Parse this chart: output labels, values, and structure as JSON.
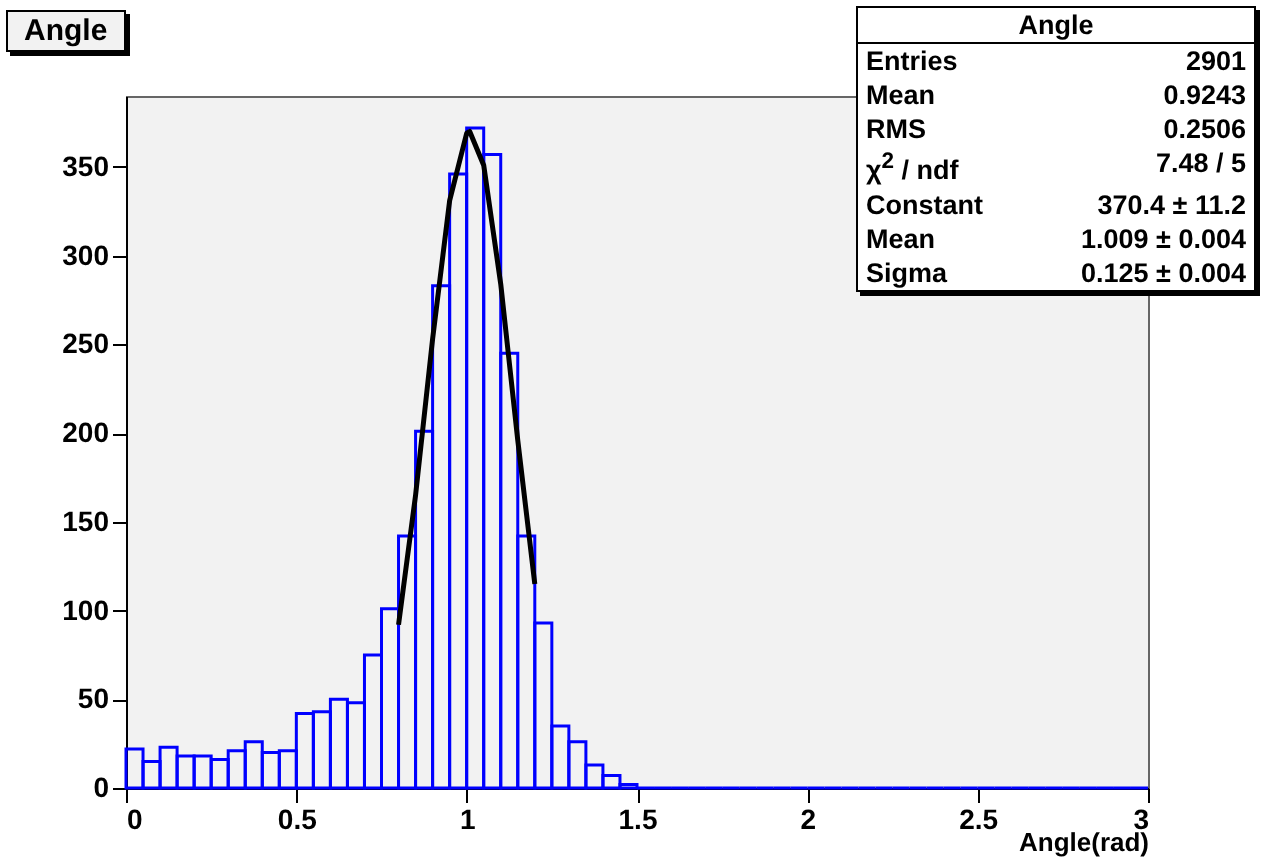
{
  "chart_data": {
    "type": "histogram",
    "title": "Angle",
    "xlabel": "Angle(rad)",
    "bins": [
      0,
      0.05,
      0.1,
      0.15,
      0.2,
      0.25,
      0.3,
      0.35,
      0.4,
      0.45,
      0.5,
      0.55,
      0.6,
      0.65,
      0.7,
      0.75,
      0.8,
      0.85,
      0.9,
      0.95,
      1,
      1.05,
      1.1,
      1.15,
      1.2,
      1.25,
      1.3,
      1.35,
      1.4,
      1.45,
      1.5,
      1.55,
      1.6,
      1.65,
      1.7,
      1.75,
      1.8,
      1.85,
      1.9,
      1.95,
      2,
      2.05,
      2.1,
      2.15,
      2.2,
      2.25,
      2.3,
      2.35,
      2.4,
      2.45,
      2.5,
      2.55,
      2.6,
      2.65,
      2.7,
      2.75,
      2.8,
      2.85,
      2.9,
      2.95,
      3
    ],
    "series": [
      {
        "color": "#0000ff",
        "values": [
          22,
          15,
          23,
          18,
          18,
          16,
          21,
          26,
          20,
          21,
          42,
          43,
          50,
          48,
          75,
          101,
          142,
          201,
          283,
          346,
          372,
          357,
          245,
          142,
          93,
          35,
          26,
          13,
          7,
          2,
          0,
          0,
          0,
          0,
          0,
          0,
          0,
          0,
          0,
          0,
          0,
          0,
          0,
          0,
          0,
          0,
          0,
          0,
          0,
          0,
          0,
          0,
          0,
          0,
          0,
          0,
          0,
          0,
          0,
          0
        ]
      },
      {
        "type": "line",
        "color": "#000000",
        "x": [
          0.8,
          0.85,
          0.9,
          0.95,
          1.0,
          1.009,
          1.05,
          1.1,
          1.15,
          1.2
        ],
        "values": [
          92,
          165,
          253,
          331,
          369,
          370,
          351,
          284,
          196,
          115
        ]
      }
    ],
    "xlim": [
      0,
      3
    ],
    "xticks": [
      0,
      0.5,
      1,
      1.5,
      2,
      2.5,
      3
    ],
    "ylim": [
      0,
      390
    ],
    "yticks": [
      0,
      50,
      100,
      150,
      200,
      250,
      300,
      350
    ],
    "grid": false,
    "annotations": [
      "Angle",
      "Entries",
      "2901",
      "Mean",
      "0.9243",
      "RMS",
      "0.2506",
      "χ$^{2}$ / ndf",
      "7.48 / 5",
      "Constant",
      "370.4 ± 11.2",
      "Mean",
      "1.009 ± 0.004",
      "Sigma",
      "0.125 ± 0.004"
    ]
  }
}
